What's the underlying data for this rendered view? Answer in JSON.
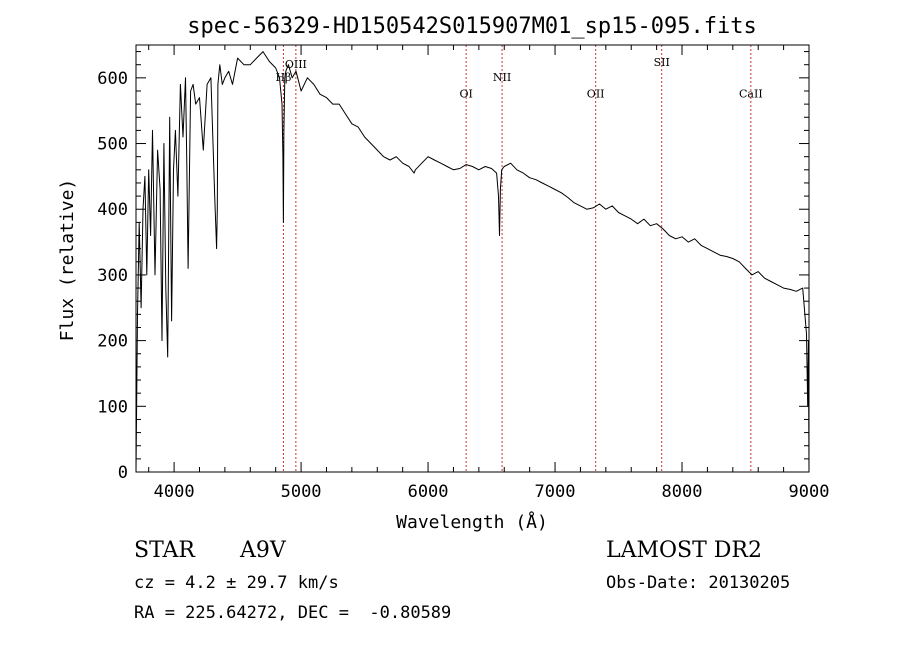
{
  "chart_data": {
    "type": "line",
    "title": "spec-56329-HD150542S015907M01_sp15-095.fits",
    "xlabel": "Wavelength (Å)",
    "ylabel": "Flux (relative)",
    "xlim": [
      3700,
      9000
    ],
    "ylim": [
      0,
      650
    ],
    "xticks": [
      4000,
      5000,
      6000,
      7000,
      8000,
      9000
    ],
    "yticks": [
      0,
      100,
      200,
      300,
      400,
      500,
      600
    ],
    "grid": false,
    "series": [
      {
        "values_x": [
          3700,
          3712,
          3725,
          3740,
          3755,
          3770,
          3785,
          3800,
          3815,
          3830,
          3850,
          3870,
          3890,
          3905,
          3920,
          3935,
          3950,
          3965,
          3980,
          3995,
          4010,
          4030,
          4050,
          4070,
          4090,
          4100,
          4110,
          4130,
          4150,
          4170,
          4200,
          4230,
          4260,
          4290,
          4320,
          4335,
          4340,
          4345,
          4360,
          4380,
          4400,
          4430,
          4460,
          4500,
          4550,
          4600,
          4650,
          4700,
          4750,
          4800,
          4830,
          4850,
          4857,
          4861,
          4865,
          4872,
          4880,
          4900,
          4930,
          4960,
          5000,
          5050,
          5100,
          5150,
          5200,
          5250,
          5300,
          5350,
          5400,
          5450,
          5500,
          5550,
          5600,
          5650,
          5700,
          5750,
          5800,
          5850,
          5890,
          5900,
          5950,
          6000,
          6050,
          6100,
          6150,
          6200,
          6250,
          6300,
          6350,
          6400,
          6450,
          6500,
          6540,
          6555,
          6563,
          6570,
          6580,
          6600,
          6650,
          6700,
          6750,
          6800,
          6850,
          6900,
          6950,
          7000,
          7050,
          7100,
          7150,
          7200,
          7250,
          7300,
          7350,
          7400,
          7450,
          7500,
          7550,
          7600,
          7650,
          7700,
          7750,
          7800,
          7850,
          7900,
          7950,
          8000,
          8050,
          8100,
          8150,
          8200,
          8250,
          8300,
          8350,
          8400,
          8450,
          8500,
          8550,
          8600,
          8650,
          8700,
          8750,
          8800,
          8850,
          8900,
          8950,
          8980,
          8990,
          8995,
          9000
        ],
        "values_y": [
          0,
          240,
          380,
          250,
          400,
          450,
          300,
          460,
          360,
          520,
          300,
          490,
          430,
          200,
          500,
          280,
          175,
          540,
          230,
          460,
          520,
          420,
          590,
          510,
          600,
          470,
          310,
          580,
          590,
          560,
          570,
          490,
          590,
          600,
          420,
          340,
          400,
          590,
          620,
          590,
          600,
          610,
          590,
          630,
          620,
          620,
          630,
          640,
          625,
          615,
          600,
          560,
          480,
          380,
          520,
          600,
          610,
          620,
          600,
          610,
          580,
          600,
          590,
          575,
          570,
          560,
          560,
          545,
          530,
          525,
          510,
          500,
          490,
          480,
          475,
          480,
          470,
          465,
          455,
          460,
          470,
          480,
          475,
          470,
          465,
          460,
          462,
          468,
          465,
          460,
          465,
          462,
          455,
          420,
          360,
          430,
          460,
          465,
          470,
          460,
          455,
          448,
          445,
          440,
          435,
          430,
          425,
          418,
          410,
          405,
          400,
          402,
          408,
          400,
          405,
          395,
          390,
          385,
          378,
          385,
          375,
          378,
          370,
          360,
          355,
          358,
          350,
          355,
          345,
          340,
          335,
          330,
          328,
          325,
          320,
          310,
          300,
          305,
          295,
          290,
          285,
          280,
          278,
          275,
          280,
          210,
          100,
          200,
          0
        ]
      }
    ],
    "lines": [
      {
        "label": "Hβ",
        "x": 4861,
        "label_y": 595
      },
      {
        "label": "OIII",
        "x": 4959,
        "label_y": 615
      },
      {
        "label": "OI",
        "x": 6300,
        "label_y": 570
      },
      {
        "label": "NII",
        "x": 6583,
        "label_y": 595
      },
      {
        "label": "OII",
        "x": 7320,
        "label_y": 570
      },
      {
        "label": "SII",
        "x": 7840,
        "label_y": 618
      },
      {
        "label": "CaII",
        "x": 8542,
        "label_y": 570
      }
    ],
    "line_color": "#cc3333",
    "spectrum_color": "#000000"
  },
  "info": {
    "object_type": "STAR",
    "spectral_class": "A9V",
    "survey": "LAMOST DR2",
    "cz": "cz = 4.2 ± 29.7 km/s",
    "obs_date": "Obs-Date: 20130205",
    "coords": "RA = 225.64272, DEC =  -0.80589"
  }
}
